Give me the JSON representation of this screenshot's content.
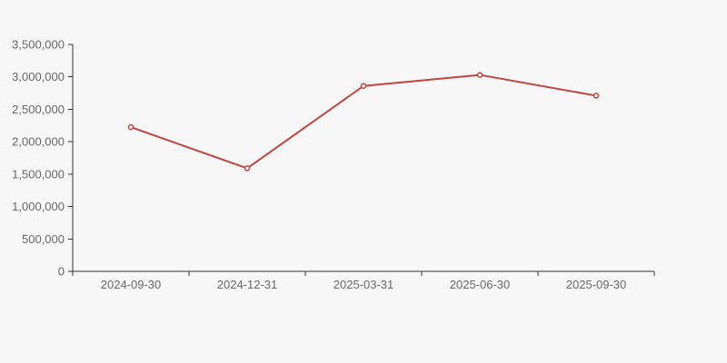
{
  "page": {
    "background_color": "#f7f7f7"
  },
  "chart_data": {
    "type": "line",
    "title": "",
    "xlabel": "",
    "ylabel": "",
    "categories": [
      "2024-09-30",
      "2024-12-31",
      "2025-03-31",
      "2025-06-30",
      "2025-09-30"
    ],
    "values": [
      2225000,
      1590000,
      2860000,
      3030000,
      2710000
    ],
    "ylim": [
      0,
      3500000
    ],
    "ytick_interval": 500000,
    "ytick_labels": [
      "0",
      "500,000",
      "1,000,000",
      "1,500,000",
      "2,000,000",
      "2,500,000",
      "3,000,000",
      "3,500,000"
    ],
    "grid": false,
    "legend": false,
    "marker_style": "open-circle",
    "line_color": "#c2443e",
    "axis_color": "#333333",
    "label_color": "#666666"
  }
}
